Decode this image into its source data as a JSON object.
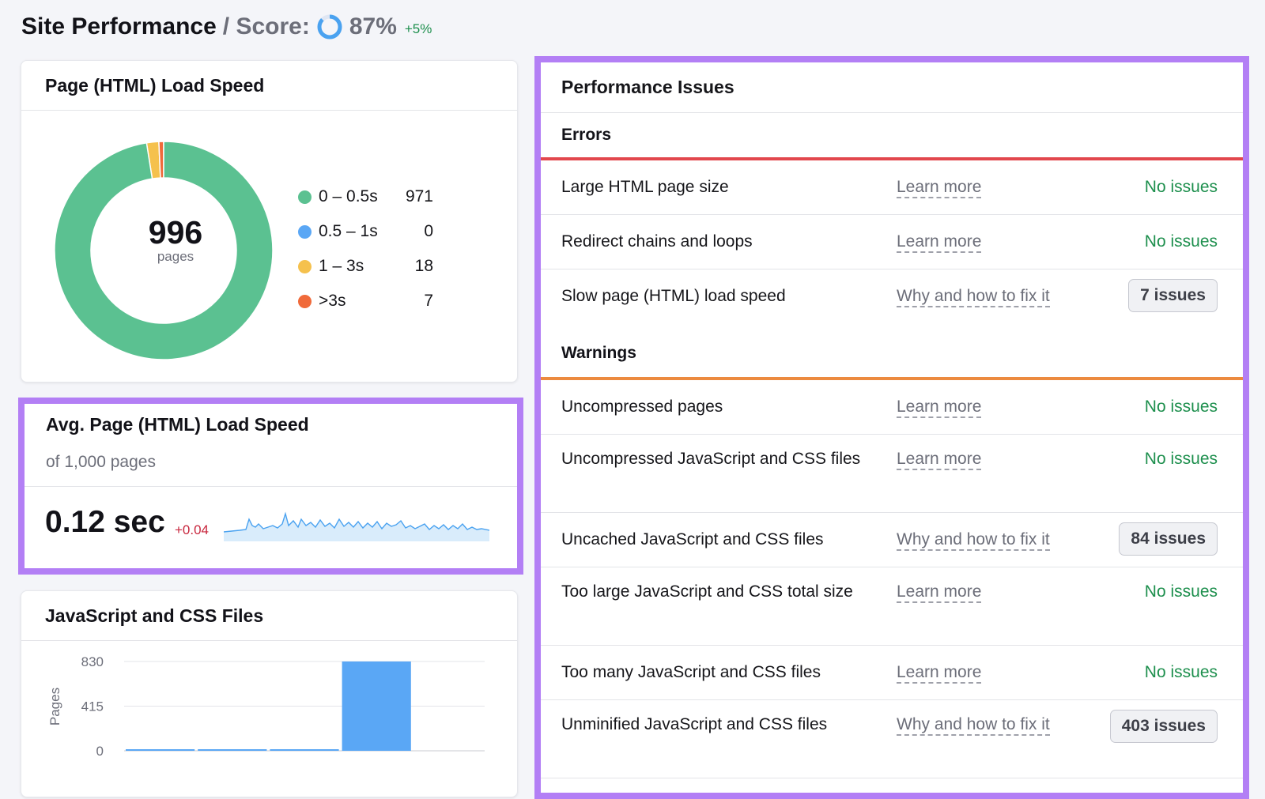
{
  "header": {
    "title": "Site Performance",
    "sep_label": "/ Score:",
    "score": "87%",
    "score_fraction": 0.87,
    "delta": "+5%"
  },
  "load_speed": {
    "title": "Page (HTML) Load Speed",
    "total": "996",
    "total_unit": "pages",
    "legend": [
      {
        "label": "0 – 0.5s",
        "value": "971",
        "color": "#5bc191"
      },
      {
        "label": "0.5 – 1s",
        "value": "0",
        "color": "#5aa7f5"
      },
      {
        "label": "1 – 3s",
        "value": "18",
        "color": "#f5c14d"
      },
      {
        "label": ">3s",
        "value": "7",
        "color": "#f06a3a"
      }
    ]
  },
  "avg_speed": {
    "title": "Avg. Page (HTML) Load Speed",
    "subtitle": "of 1,000 pages",
    "value": "0.12 sec",
    "delta": "+0.04"
  },
  "js_css": {
    "title": "JavaScript and CSS Files"
  },
  "chart_data": {
    "type": "bar",
    "ylabel": "Pages",
    "xlabel": "",
    "yticks": [
      "830",
      "415",
      "0"
    ],
    "ylim": [
      0,
      830
    ],
    "categories": [
      "",
      "",
      "",
      "",
      ""
    ],
    "values": [
      3,
      3,
      3,
      830,
      0
    ],
    "grid": true
  },
  "issues": {
    "title": "Performance Issues",
    "errors_label": "Errors",
    "warnings_label": "Warnings",
    "errors_color": "#e2474d",
    "warnings_color": "#ec8a3f",
    "errors": [
      {
        "name": "Large HTML page size",
        "link": "Learn more",
        "status": "No issues",
        "badge": false
      },
      {
        "name": "Redirect chains and loops",
        "link": "Learn more",
        "status": "No issues",
        "badge": false
      },
      {
        "name": "Slow page (HTML) load speed",
        "link": "Why and how to fix it",
        "status": "7 issues",
        "badge": true
      }
    ],
    "warnings": [
      {
        "name": "Uncompressed pages",
        "link": "Learn more",
        "status": "No issues",
        "badge": false
      },
      {
        "name": "Uncompressed JavaScript and CSS files",
        "link": "Learn more",
        "status": "No issues",
        "badge": false
      },
      {
        "name": "Uncached JavaScript and CSS files",
        "link": "Why and how to fix it",
        "status": "84 issues",
        "badge": true
      },
      {
        "name": "Too large JavaScript and CSS total size",
        "link": "Learn more",
        "status": "No issues",
        "badge": false
      },
      {
        "name": "Too many JavaScript and CSS files",
        "link": "Learn more",
        "status": "No issues",
        "badge": false
      },
      {
        "name": "Unminified JavaScript and CSS files",
        "link": "Why and how to fix it",
        "status": "403 issues",
        "badge": true
      }
    ]
  }
}
